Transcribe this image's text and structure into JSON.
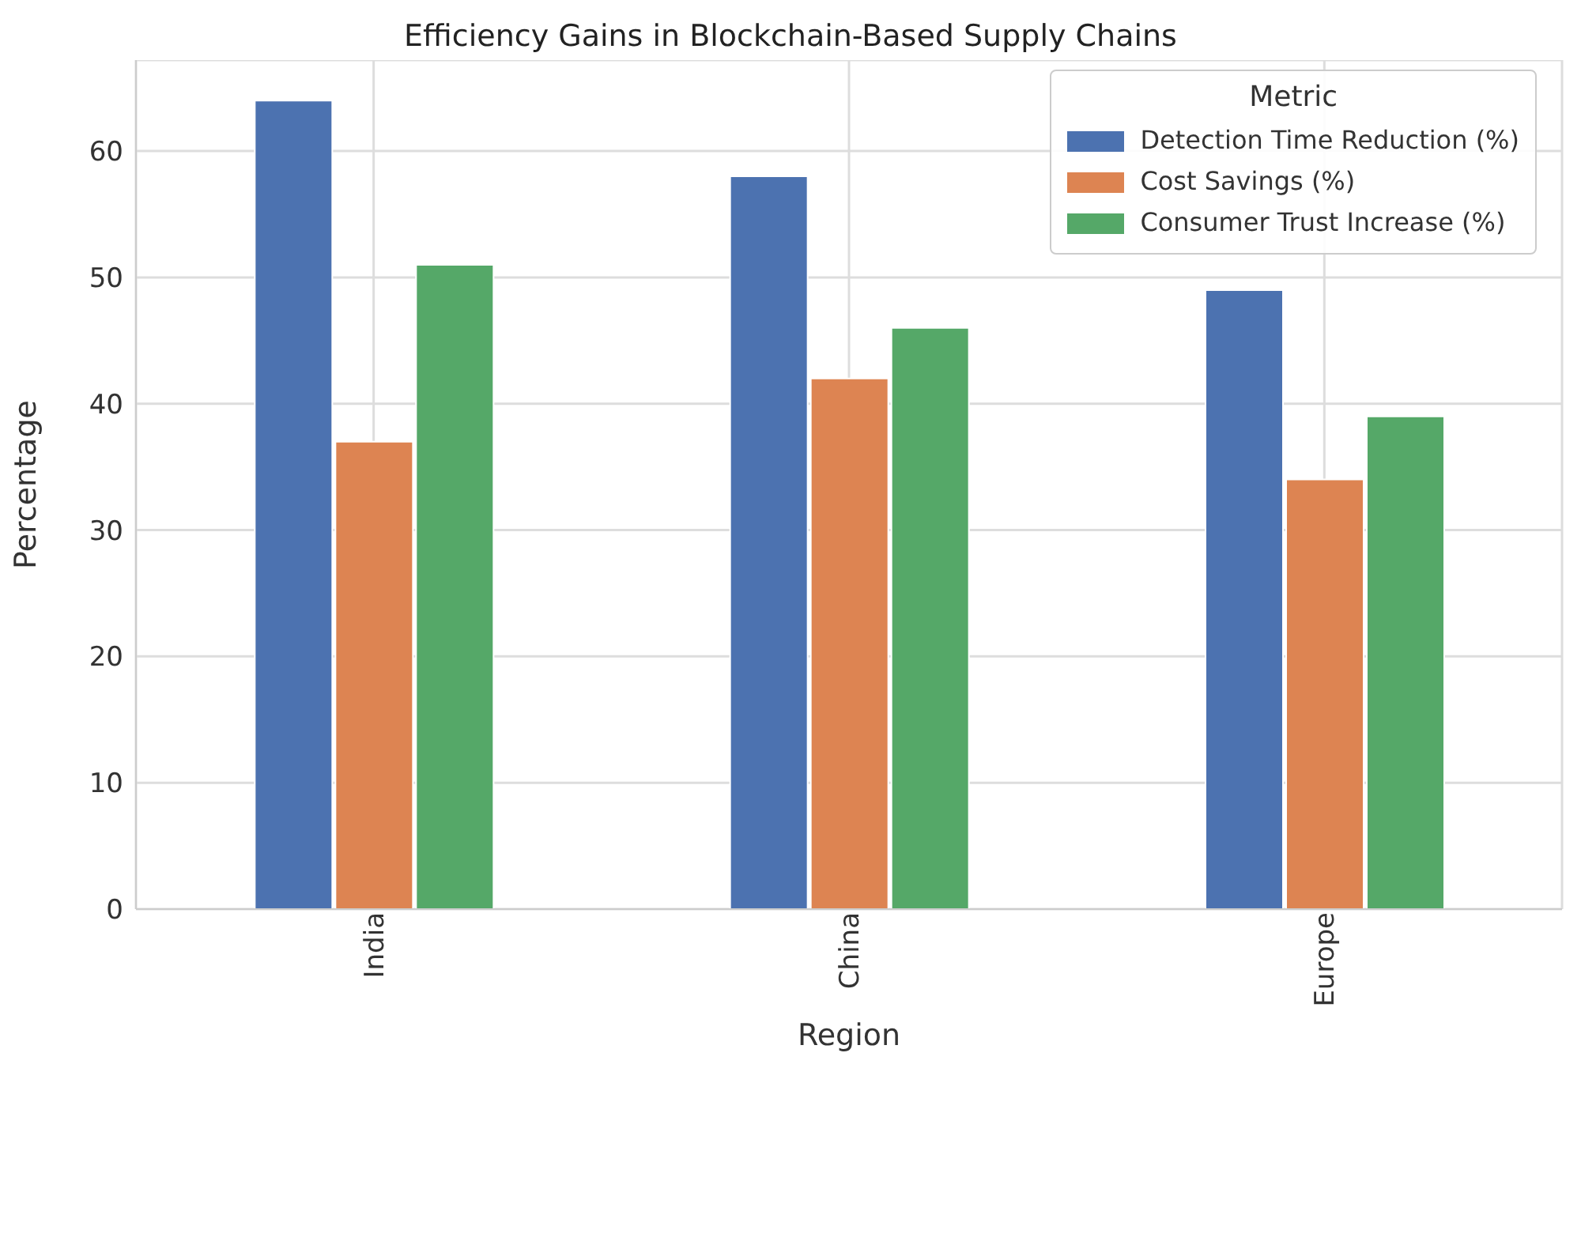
{
  "chart_data": {
    "type": "bar",
    "title": "Efficiency Gains in Blockchain-Based Supply Chains",
    "xlabel": "Region",
    "ylabel": "Percentage",
    "legend_title": "Metric",
    "categories": [
      "India",
      "China",
      "Europe"
    ],
    "series": [
      {
        "name": "Detection Time Reduction (%)",
        "color": "#4c72b0",
        "values": [
          64,
          58,
          49
        ]
      },
      {
        "name": "Cost Savings (%)",
        "color": "#dd8452",
        "values": [
          37,
          42,
          34
        ]
      },
      {
        "name": "Consumer Trust Increase (%)",
        "color": "#55a868",
        "values": [
          51,
          46,
          39
        ]
      }
    ],
    "ylim": [
      0,
      67.2
    ],
    "yticks": [
      0,
      10,
      20,
      30,
      40,
      50,
      60
    ],
    "grid": true,
    "legend": "top right"
  }
}
